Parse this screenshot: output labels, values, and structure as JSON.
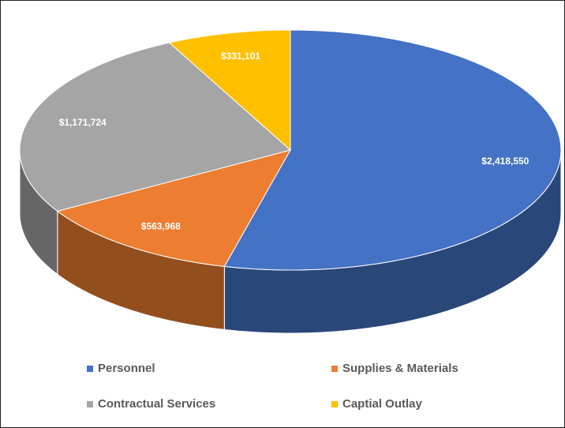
{
  "chart_data": {
    "type": "pie3d",
    "categories": [
      "Personnel",
      "Supplies & Materials",
      "Contractual Services",
      "Captial Outlay"
    ],
    "values": [
      2418550,
      563968,
      1171724,
      331101
    ],
    "value_labels": [
      "$2,418,550",
      "$563,968",
      "$1,171,724",
      "$331,101"
    ],
    "colors": [
      "#4472c4",
      "#ed7d31",
      "#a5a5a5",
      "#ffc000"
    ],
    "legend": "bottom"
  }
}
